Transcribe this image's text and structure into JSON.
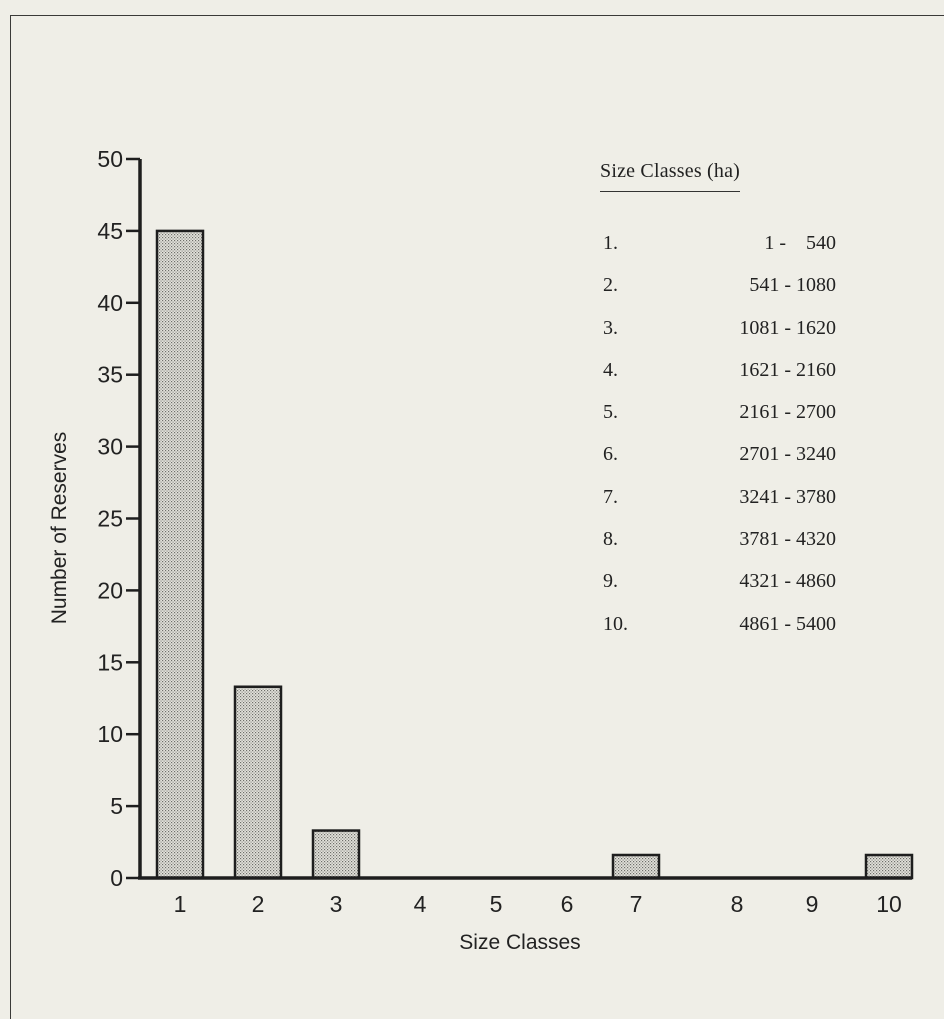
{
  "chart_data": {
    "type": "bar",
    "categories": [
      "1",
      "2",
      "3",
      "4",
      "5",
      "6",
      "7",
      "8",
      "9",
      "10"
    ],
    "values": [
      45,
      13.3,
      3.3,
      0,
      0,
      0,
      1.6,
      0,
      0,
      1.6
    ],
    "xlabel": "Size Classes",
    "ylabel": "Number of Reserves",
    "ylim": [
      0,
      50
    ],
    "yticks": [
      "0",
      "5",
      "10",
      "15",
      "20",
      "25",
      "30",
      "35",
      "40",
      "45",
      "50"
    ],
    "grid": false,
    "bar_fill": "#c9c9c3",
    "bar_stroke": "#1e1e1e"
  },
  "size_table": {
    "title": "Size Classes (ha)",
    "rows": [
      {
        "num": "1.",
        "range": "1 -    540"
      },
      {
        "num": "2.",
        "range": "541 - 1080"
      },
      {
        "num": "3.",
        "range": "1081 - 1620"
      },
      {
        "num": "4.",
        "range": "1621 - 2160"
      },
      {
        "num": "5.",
        "range": "2161 - 2700"
      },
      {
        "num": "6.",
        "range": "2701 - 3240"
      },
      {
        "num": "7.",
        "range": "3241 - 3780"
      },
      {
        "num": "8.",
        "range": "3781 - 4320"
      },
      {
        "num": "9.",
        "range": "4321 - 4860"
      },
      {
        "num": "10.",
        "range": "4861 - 5400"
      }
    ]
  }
}
